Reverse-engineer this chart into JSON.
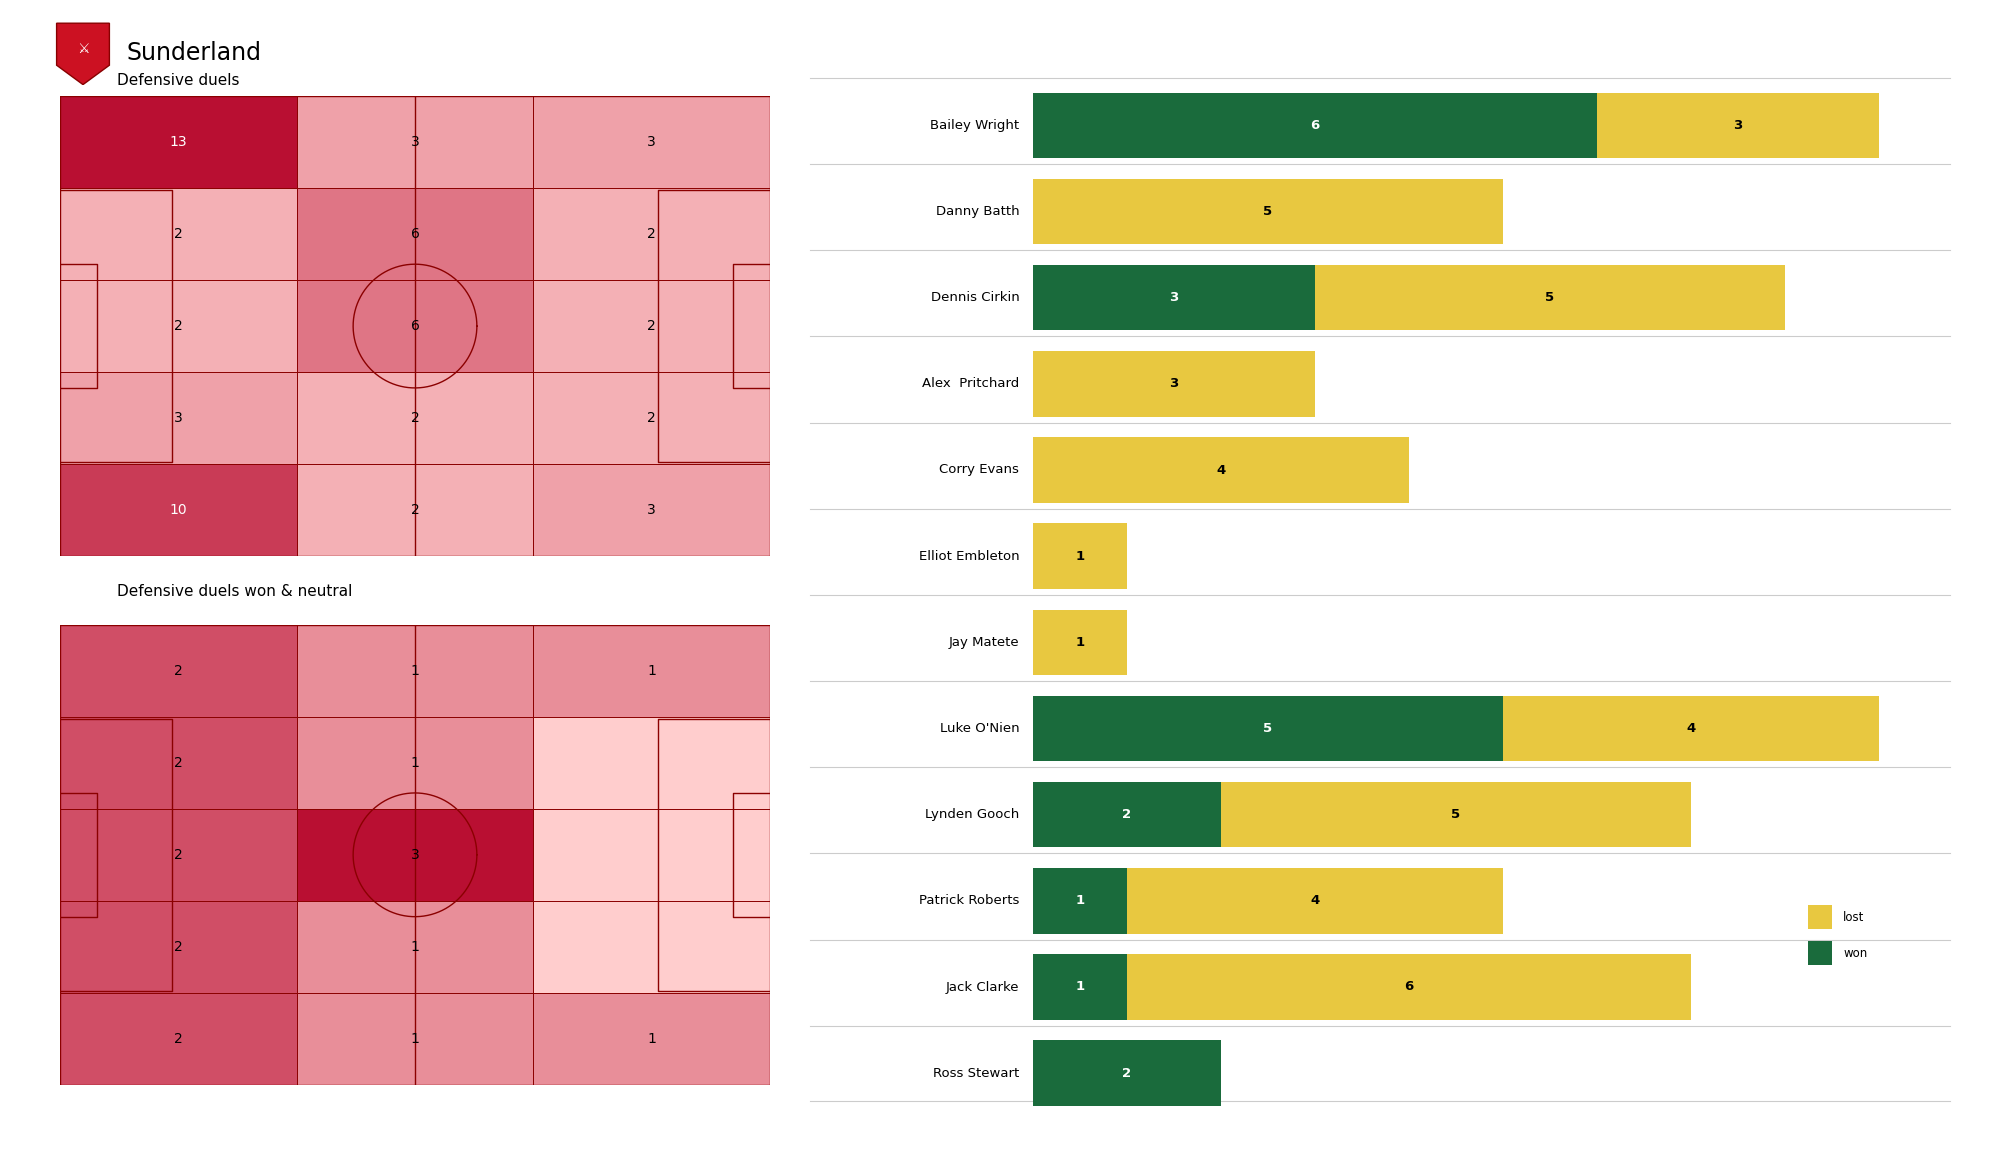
{
  "title": "Sunderland",
  "heatmap1_title": "Defensive duels",
  "heatmap2_title": "Defensive duels won & neutral",
  "heatmap1_values": [
    [
      13,
      3,
      3
    ],
    [
      2,
      6,
      2
    ],
    [
      2,
      6,
      2
    ],
    [
      3,
      2,
      2
    ],
    [
      10,
      2,
      3
    ]
  ],
  "heatmap2_values": [
    [
      2,
      1,
      1
    ],
    [
      2,
      1,
      0
    ],
    [
      2,
      3,
      0
    ],
    [
      2,
      1,
      0
    ],
    [
      2,
      1,
      1
    ]
  ],
  "players": [
    "Bailey Wright",
    "Danny Batth",
    "Dennis Cirkin",
    "Alex  Pritchard",
    "Corry Evans",
    "Elliot Embleton",
    "Jay Matete",
    "Luke O'Nien",
    "Lynden Gooch",
    "Patrick Roberts",
    "Jack Clarke",
    "Ross Stewart"
  ],
  "won": [
    6,
    0,
    3,
    0,
    0,
    0,
    0,
    5,
    2,
    1,
    1,
    2
  ],
  "lost": [
    3,
    5,
    5,
    3,
    4,
    1,
    1,
    4,
    5,
    4,
    6,
    0
  ],
  "bar_won_color": "#1a6b3c",
  "bar_lost_color": "#e8c840",
  "bg_color": "#ffffff",
  "pitch_line_color": "#8B0000",
  "heatmap1_max": 13,
  "heatmap2_max": 3,
  "light_color": [
    255,
    205,
    205
  ],
  "dark_color": [
    185,
    15,
    50
  ]
}
